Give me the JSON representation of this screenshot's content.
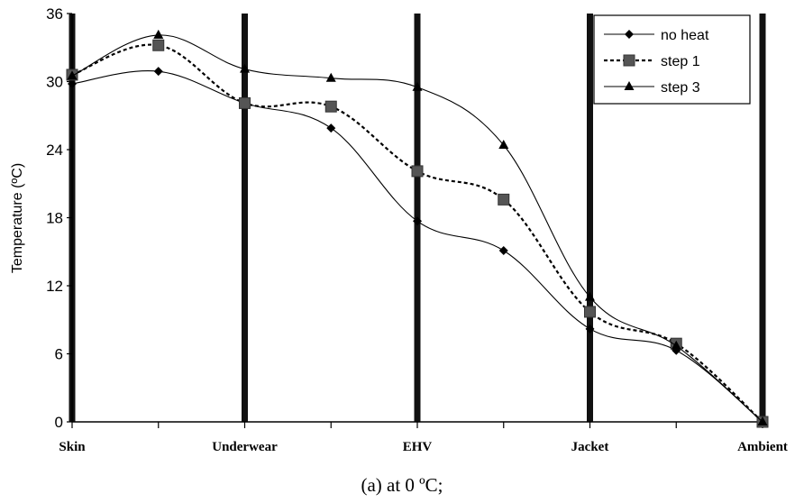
{
  "chart_data": {
    "type": "line",
    "ylabel": "Temperature (ºC)",
    "ylim": [
      0,
      36
    ],
    "yticks": [
      "0",
      "6",
      "12",
      "18",
      "24",
      "30",
      "36"
    ],
    "x": [
      0,
      1,
      2,
      3,
      4,
      5,
      6,
      7,
      8
    ],
    "category_labels": [
      {
        "x": 0,
        "label": "Skin"
      },
      {
        "x": 2,
        "label": "Underwear"
      },
      {
        "x": 4,
        "label": "EHV"
      },
      {
        "x": 6,
        "label": "Jacket"
      },
      {
        "x": 8,
        "label": "Ambient"
      }
    ],
    "layer_boundaries": [
      0,
      2,
      4,
      6,
      8
    ],
    "series": [
      {
        "name": "no heat",
        "marker": "diamond",
        "dash": false,
        "values": [
          29.8,
          30.9,
          28.1,
          25.9,
          17.7,
          15.1,
          8.2,
          6.3,
          0
        ]
      },
      {
        "name": "step 1",
        "marker": "square",
        "dash": true,
        "values": [
          30.6,
          33.2,
          28.1,
          27.8,
          22.1,
          19.6,
          9.7,
          6.9,
          0
        ]
      },
      {
        "name": "step 3",
        "marker": "triangle",
        "dash": false,
        "values": [
          30.5,
          34.1,
          31.1,
          30.3,
          29.5,
          24.4,
          11.0,
          6.7,
          0
        ]
      }
    ],
    "legend_position": "top-right",
    "grid": false
  },
  "caption": "(a) at 0 ºC;"
}
